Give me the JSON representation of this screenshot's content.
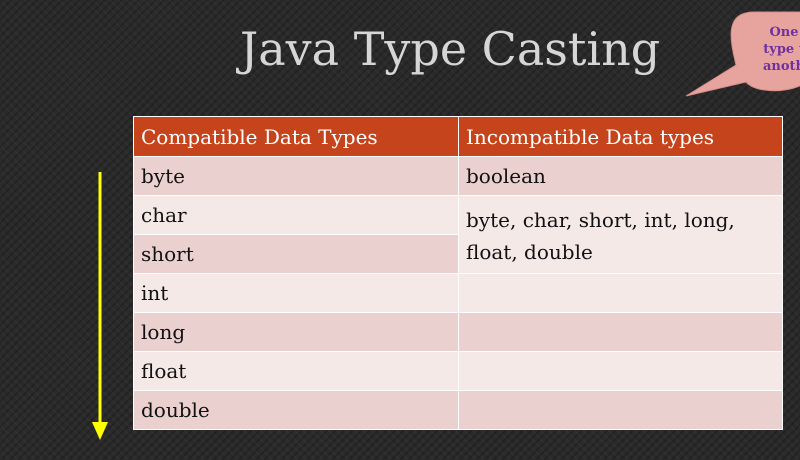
{
  "title": "Java Type Casting",
  "callout": {
    "lines": [
      "One",
      "type t",
      "anoth"
    ],
    "fill": "#e7a49f",
    "text_color": "#7030a0"
  },
  "arrow_color": "#ffff00",
  "table": {
    "header_color": "#c6441c",
    "headers": [
      "Compatible Data Types",
      "Incompatible Data types"
    ],
    "compatible": [
      "byte",
      "char",
      "short",
      "int",
      "long",
      "float",
      "double"
    ],
    "incompatible": [
      "boolean",
      "byte, char, short, int, long, float, double"
    ]
  }
}
